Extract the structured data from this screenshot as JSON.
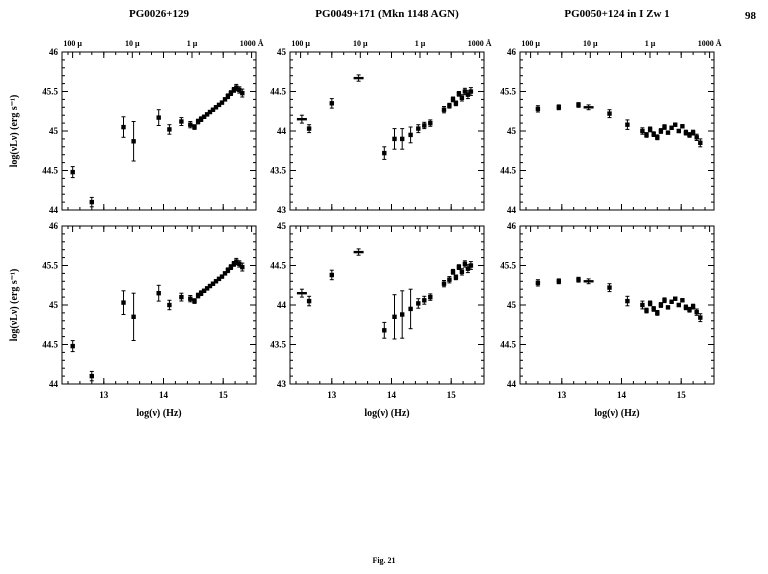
{
  "page": {
    "number": "98",
    "caption": "Fig. 21"
  },
  "figure": {
    "column_titles": [
      "PG0026+129",
      "PG0049+171 (Mkn 1148 AGN)",
      "PG0050+124 in I Zw 1"
    ],
    "xlabel": "log(ν) (Hz)",
    "ylabel": "log(νLν) (erg s⁻¹)",
    "top_axis_labels": [
      "100 μ",
      "10 μ",
      "1 μ",
      "1000 Å"
    ]
  },
  "chart_data": [
    {
      "type": "scatter",
      "title": "PG0026+129 — top panel",
      "xlabel": "log(ν) (Hz)",
      "ylabel": "log(νLν) (erg s⁻¹)",
      "grid": false,
      "xlim": [
        12.3,
        15.55
      ],
      "ylim": [
        44,
        46
      ],
      "xticks": [
        13,
        14,
        15
      ],
      "yticks": [
        44,
        44.5,
        45,
        45.5,
        46
      ],
      "top_tick_positions": [
        12.477,
        13.477,
        14.477,
        15.477
      ],
      "show_top_labels": true,
      "show_x_tick_labels": false,
      "points": [
        [
          12.48,
          44.48,
          0.07
        ],
        [
          12.8,
          44.1,
          0.06
        ],
        [
          13.33,
          45.05,
          0.13
        ],
        [
          13.5,
          44.87,
          0.25
        ],
        [
          13.92,
          45.17,
          0.1
        ],
        [
          14.1,
          45.02,
          0.06
        ],
        [
          14.3,
          45.12,
          0.05
        ],
        [
          14.45,
          45.08,
          0.04
        ],
        [
          14.52,
          45.05,
          0.03
        ],
        [
          14.58,
          45.12,
          0.03
        ],
        [
          14.63,
          45.15,
          0.03
        ],
        [
          14.68,
          45.18,
          0.02
        ],
        [
          14.73,
          45.21,
          0.02
        ],
        [
          14.78,
          45.24,
          0.02
        ],
        [
          14.83,
          45.27,
          0.02
        ],
        [
          14.88,
          45.3,
          0.02
        ],
        [
          14.93,
          45.33,
          0.02
        ],
        [
          14.98,
          45.36,
          0.02
        ],
        [
          15.03,
          45.4,
          0.02
        ],
        [
          15.08,
          45.44,
          0.03
        ],
        [
          15.13,
          45.48,
          0.03
        ],
        [
          15.18,
          45.52,
          0.03
        ],
        [
          15.22,
          45.55,
          0.04
        ],
        [
          15.27,
          45.52,
          0.04
        ],
        [
          15.32,
          45.48,
          0.05
        ]
      ]
    },
    {
      "type": "scatter",
      "title": "PG0049+171 (Mkn 1148 AGN) — top panel",
      "xlabel": "log(ν) (Hz)",
      "ylabel": "log(νLν) (erg s⁻¹)",
      "grid": false,
      "xlim": [
        12.3,
        15.55
      ],
      "ylim": [
        43,
        45
      ],
      "xticks": [
        13,
        14,
        15
      ],
      "yticks": [
        43,
        43.5,
        44,
        44.5,
        45
      ],
      "top_tick_positions": [
        12.477,
        13.477,
        14.477,
        15.477
      ],
      "show_top_labels": true,
      "show_x_tick_labels": false,
      "points": [
        [
          12.5,
          44.15,
          0.05,
          "hbar"
        ],
        [
          12.62,
          44.03,
          0.05
        ],
        [
          13.0,
          44.35,
          0.06
        ],
        [
          13.45,
          44.67,
          0.04,
          "hbar"
        ],
        [
          13.88,
          43.72,
          0.08
        ],
        [
          14.05,
          43.9,
          0.13
        ],
        [
          14.18,
          43.9,
          0.13
        ],
        [
          14.32,
          43.95,
          0.1
        ],
        [
          14.45,
          44.03,
          0.05
        ],
        [
          14.55,
          44.07,
          0.04
        ],
        [
          14.65,
          44.1,
          0.04
        ],
        [
          14.88,
          44.27,
          0.04
        ],
        [
          14.97,
          44.32,
          0.03
        ],
        [
          15.03,
          44.4,
          0.03
        ],
        [
          15.08,
          44.35,
          0.03
        ],
        [
          15.13,
          44.47,
          0.03
        ],
        [
          15.18,
          44.42,
          0.04
        ],
        [
          15.23,
          44.5,
          0.04
        ],
        [
          15.28,
          44.46,
          0.05
        ],
        [
          15.33,
          44.5,
          0.05
        ]
      ]
    },
    {
      "type": "scatter",
      "title": "PG0050+124 in I Zw 1 — top panel",
      "xlabel": "log(ν) (Hz)",
      "ylabel": "log(νLν) (erg s⁻¹)",
      "grid": false,
      "xlim": [
        12.3,
        15.55
      ],
      "ylim": [
        44,
        46
      ],
      "xticks": [
        13,
        14,
        15
      ],
      "yticks": [
        44,
        44.5,
        45,
        45.5,
        46
      ],
      "top_tick_positions": [
        12.477,
        13.477,
        14.477,
        15.477
      ],
      "show_top_labels": true,
      "show_x_tick_labels": false,
      "points": [
        [
          12.6,
          45.28,
          0.04
        ],
        [
          12.95,
          45.3,
          0.03
        ],
        [
          13.28,
          45.33,
          0.03
        ],
        [
          13.45,
          45.3,
          0.03,
          "hbar"
        ],
        [
          13.8,
          45.22,
          0.05
        ],
        [
          14.1,
          45.08,
          0.06
        ],
        [
          14.35,
          45.0,
          0.04
        ],
        [
          14.42,
          44.95,
          0.03
        ],
        [
          14.48,
          45.02,
          0.03
        ],
        [
          14.54,
          44.96,
          0.03
        ],
        [
          14.6,
          44.92,
          0.03
        ],
        [
          14.66,
          45.0,
          0.03
        ],
        [
          14.72,
          45.05,
          0.03
        ],
        [
          14.78,
          44.98,
          0.02
        ],
        [
          14.84,
          45.04,
          0.02
        ],
        [
          14.9,
          45.08,
          0.02
        ],
        [
          14.96,
          45.0,
          0.02
        ],
        [
          15.02,
          45.06,
          0.02
        ],
        [
          15.08,
          44.98,
          0.03
        ],
        [
          15.14,
          44.95,
          0.03
        ],
        [
          15.2,
          44.98,
          0.03
        ],
        [
          15.26,
          44.92,
          0.04
        ],
        [
          15.32,
          44.85,
          0.05
        ]
      ]
    },
    {
      "type": "scatter",
      "title": "PG0026+129 — bottom panel",
      "xlabel": "log(ν) (Hz)",
      "ylabel": "log(νLν) (erg s⁻¹)",
      "grid": false,
      "xlim": [
        12.3,
        15.55
      ],
      "ylim": [
        44,
        46
      ],
      "xticks": [
        13,
        14,
        15
      ],
      "yticks": [
        44,
        44.5,
        45,
        45.5,
        46
      ],
      "top_tick_positions": [
        12.477,
        13.477,
        14.477,
        15.477
      ],
      "show_top_labels": false,
      "show_x_tick_labels": true,
      "points": [
        [
          12.48,
          44.48,
          0.07
        ],
        [
          12.8,
          44.1,
          0.06
        ],
        [
          13.33,
          45.03,
          0.15
        ],
        [
          13.5,
          44.85,
          0.3
        ],
        [
          13.92,
          45.15,
          0.1
        ],
        [
          14.1,
          45.0,
          0.06
        ],
        [
          14.3,
          45.1,
          0.05
        ],
        [
          14.45,
          45.08,
          0.04
        ],
        [
          14.52,
          45.05,
          0.03
        ],
        [
          14.58,
          45.12,
          0.03
        ],
        [
          14.63,
          45.15,
          0.03
        ],
        [
          14.68,
          45.18,
          0.02
        ],
        [
          14.73,
          45.21,
          0.02
        ],
        [
          14.78,
          45.24,
          0.02
        ],
        [
          14.83,
          45.27,
          0.02
        ],
        [
          14.88,
          45.3,
          0.02
        ],
        [
          14.93,
          45.33,
          0.02
        ],
        [
          14.98,
          45.36,
          0.02
        ],
        [
          15.03,
          45.4,
          0.02
        ],
        [
          15.08,
          45.44,
          0.03
        ],
        [
          15.13,
          45.48,
          0.03
        ],
        [
          15.18,
          45.52,
          0.03
        ],
        [
          15.22,
          45.55,
          0.04
        ],
        [
          15.27,
          45.52,
          0.04
        ],
        [
          15.32,
          45.48,
          0.05
        ]
      ]
    },
    {
      "type": "scatter",
      "title": "PG0049+171 (Mkn 1148 AGN) — bottom panel",
      "xlabel": "log(ν) (Hz)",
      "ylabel": "log(νLν) (erg s⁻¹)",
      "grid": false,
      "xlim": [
        12.3,
        15.55
      ],
      "ylim": [
        43,
        45
      ],
      "xticks": [
        13,
        14,
        15
      ],
      "yticks": [
        43,
        43.5,
        44,
        44.5,
        45
      ],
      "top_tick_positions": [
        12.477,
        13.477,
        14.477,
        15.477
      ],
      "show_top_labels": false,
      "show_x_tick_labels": true,
      "points": [
        [
          12.5,
          44.15,
          0.05,
          "hbar"
        ],
        [
          12.62,
          44.05,
          0.06
        ],
        [
          13.0,
          44.38,
          0.06
        ],
        [
          13.45,
          44.67,
          0.04,
          "hbar"
        ],
        [
          13.88,
          43.68,
          0.1
        ],
        [
          14.05,
          43.85,
          0.28
        ],
        [
          14.18,
          43.88,
          0.3
        ],
        [
          14.32,
          43.95,
          0.25
        ],
        [
          14.45,
          44.02,
          0.06
        ],
        [
          14.55,
          44.06,
          0.05
        ],
        [
          14.65,
          44.1,
          0.04
        ],
        [
          14.88,
          44.27,
          0.04
        ],
        [
          14.97,
          44.32,
          0.04
        ],
        [
          15.03,
          44.42,
          0.03
        ],
        [
          15.08,
          44.35,
          0.03
        ],
        [
          15.13,
          44.48,
          0.03
        ],
        [
          15.18,
          44.42,
          0.04
        ],
        [
          15.23,
          44.52,
          0.04
        ],
        [
          15.28,
          44.46,
          0.05
        ],
        [
          15.33,
          44.5,
          0.05
        ]
      ]
    },
    {
      "type": "scatter",
      "title": "PG0050+124 in I Zw 1 — bottom panel",
      "xlabel": "log(ν) (Hz)",
      "ylabel": "log(νLν) (erg s⁻¹)",
      "grid": false,
      "xlim": [
        12.3,
        15.55
      ],
      "ylim": [
        44,
        46
      ],
      "xticks": [
        13,
        14,
        15
      ],
      "yticks": [
        44,
        44.5,
        45,
        45.5,
        46
      ],
      "top_tick_positions": [
        12.477,
        13.477,
        14.477,
        15.477
      ],
      "show_top_labels": false,
      "show_x_tick_labels": true,
      "points": [
        [
          12.6,
          45.28,
          0.04
        ],
        [
          12.95,
          45.3,
          0.03
        ],
        [
          13.28,
          45.32,
          0.03
        ],
        [
          13.45,
          45.3,
          0.03,
          "hbar"
        ],
        [
          13.8,
          45.22,
          0.05
        ],
        [
          14.1,
          45.05,
          0.06
        ],
        [
          14.35,
          45.0,
          0.05
        ],
        [
          14.42,
          44.93,
          0.03
        ],
        [
          14.48,
          45.02,
          0.03
        ],
        [
          14.54,
          44.95,
          0.03
        ],
        [
          14.6,
          44.9,
          0.03
        ],
        [
          14.66,
          45.0,
          0.03
        ],
        [
          14.72,
          45.06,
          0.03
        ],
        [
          14.78,
          44.97,
          0.02
        ],
        [
          14.84,
          45.04,
          0.02
        ],
        [
          14.9,
          45.08,
          0.02
        ],
        [
          14.96,
          45.0,
          0.02
        ],
        [
          15.02,
          45.06,
          0.02
        ],
        [
          15.08,
          44.97,
          0.03
        ],
        [
          15.14,
          44.94,
          0.03
        ],
        [
          15.2,
          44.98,
          0.03
        ],
        [
          15.26,
          44.91,
          0.04
        ],
        [
          15.32,
          44.84,
          0.05
        ]
      ]
    }
  ]
}
